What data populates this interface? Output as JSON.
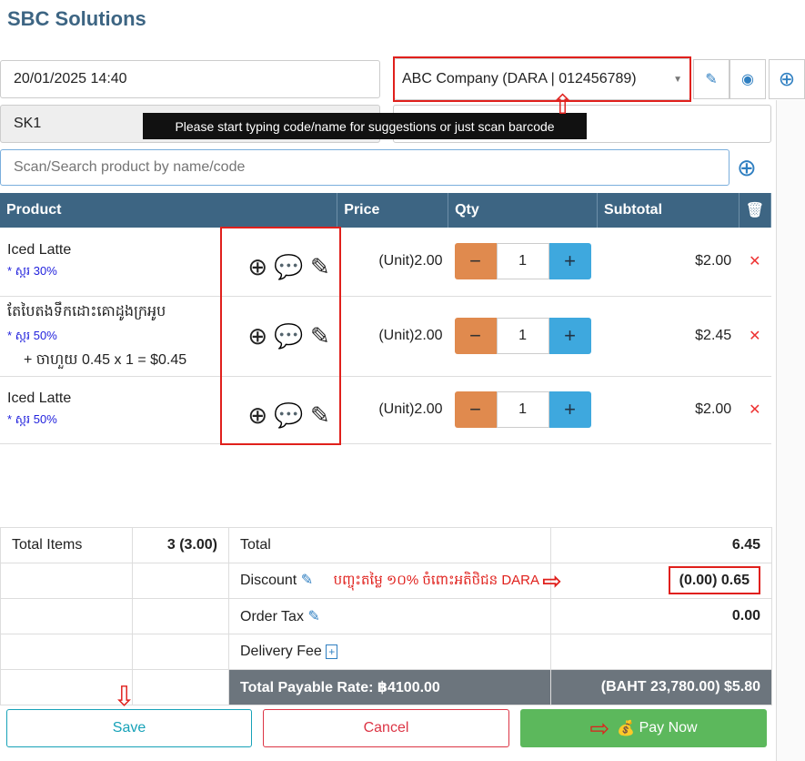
{
  "app": {
    "title": "SBC Solutions"
  },
  "header": {
    "datetime": "20/01/2025 14:40",
    "customer": "ABC Company (DARA | 012456789)",
    "warehouse": "SK1",
    "tooltip": "Please start typing code/name for suggestions or just scan barcode",
    "search_placeholder": "Scan/Search product by name/code"
  },
  "table": {
    "headers": [
      "Product",
      "Price",
      "Qty",
      "Subtotal"
    ],
    "rows": [
      {
        "name": "Iced Latte",
        "modifier": "* ស្ករ 30%",
        "addon": "",
        "price": "(Unit)2.00",
        "qty": "1",
        "subtotal": "$2.00"
      },
      {
        "name": "តែបៃតងទឹកដោះគោដូងក្រអូប",
        "modifier": "* ស្ករ 50%",
        "addon": "+ ចាហួយ 0.45 x 1 = $0.45",
        "price": "(Unit)2.00",
        "qty": "1",
        "subtotal": "$2.45"
      },
      {
        "name": "Iced Latte",
        "modifier": "* ស្ករ 50%",
        "addon": "",
        "price": "(Unit)2.00",
        "qty": "1",
        "subtotal": "$2.00"
      }
    ]
  },
  "totals": {
    "items_label": "Total Items",
    "items_value": "3 (3.00)",
    "total_label": "Total",
    "total_value": "6.45",
    "discount_label": "Discount",
    "discount_value": "(0.00) 0.65",
    "discount_note": "បញ្ចុះតម្លៃ ១០% ចំពោះអតិថិជន DARA",
    "tax_label": "Order Tax",
    "tax_value": "0.00",
    "delivery_label": "Delivery Fee",
    "payable_label": "Total Payable Rate: ฿4100.00",
    "payable_value": "(BAHT 23,780.00) $5.80"
  },
  "buttons": {
    "save": "Save",
    "cancel": "Cancel",
    "pay": "Pay Now"
  },
  "colors": {
    "header": "#3d6583",
    "annotation": "#e0201c",
    "pay": "#5cb85c"
  }
}
